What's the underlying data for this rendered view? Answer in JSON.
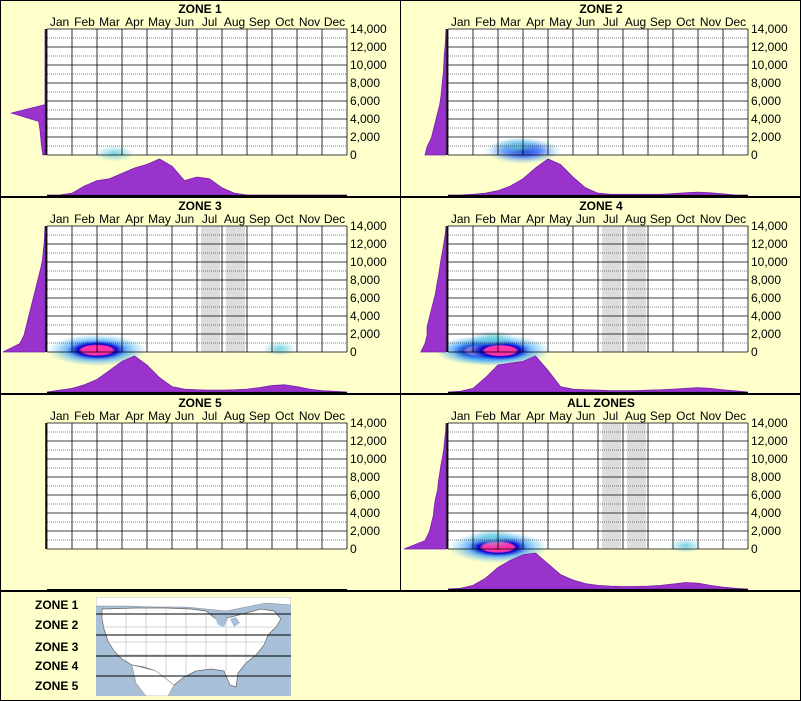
{
  "colors": {
    "background": "#ffffcc",
    "density_fill": "#9933cc",
    "density_stroke": "#7722aa",
    "peak": "#ff33aa",
    "core": "#0000cc",
    "halo": "#66ccdd",
    "shade": "#dddddd"
  },
  "months": [
    "Jan",
    "Feb",
    "Mar",
    "Apr",
    "May",
    "Jun",
    "Jul",
    "Aug",
    "Sep",
    "Oct",
    "Nov",
    "Dec"
  ],
  "y_ticks": [
    "14,000",
    "12,000",
    "10,000",
    "8,000",
    "6,000",
    "4,000",
    "2,000",
    "0"
  ],
  "chart_data": [
    {
      "type": "heatmap",
      "title": "ZONE 1",
      "ylim": [
        0,
        14000
      ],
      "shaded_months": [],
      "hot_spots": [
        {
          "month": 3.2,
          "elev": 150,
          "intensity": 0.2
        }
      ],
      "month_profile": [
        0,
        0,
        0.05,
        0.25,
        0.4,
        0.45,
        0.6,
        0.75,
        0.85,
        1.0,
        0.8,
        0.4,
        0.5,
        0.45,
        0.2,
        0.05,
        0,
        0,
        0,
        0,
        0,
        0,
        0,
        0,
        0
      ],
      "elev_profile": [
        0.05,
        0.08,
        0.1,
        0.12,
        0.15,
        0.8,
        0,
        0,
        0,
        0,
        0,
        0,
        0,
        0,
        0,
        0
      ]
    },
    {
      "type": "heatmap",
      "title": "ZONE 2",
      "ylim": [
        0,
        14000
      ],
      "shaded_months": [],
      "hot_spots": [
        {
          "month": 3.5,
          "elev": 450,
          "intensity": 0.7
        },
        {
          "month": 3.3,
          "elev": 900,
          "intensity": 0.35
        }
      ],
      "month_profile": [
        0,
        0,
        0.02,
        0.05,
        0.12,
        0.25,
        0.45,
        0.75,
        1.0,
        0.85,
        0.5,
        0.2,
        0.05,
        0.02,
        0.02,
        0.02,
        0.02,
        0.02,
        0.04,
        0.06,
        0.08,
        0.06,
        0.03,
        0,
        0
      ],
      "elev_profile": [
        0.5,
        0.45,
        0.35,
        0.3,
        0.25,
        0.2,
        0.15,
        0.12,
        0.1,
        0.08,
        0.06,
        0.05,
        0.04,
        0.02,
        0.01,
        0
      ]
    },
    {
      "type": "heatmap",
      "title": "ZONE 3",
      "ylim": [
        0,
        14000
      ],
      "shaded_months": [
        6,
        7
      ],
      "hot_spots": [
        {
          "month": 2.5,
          "elev": 200,
          "intensity": 1.0
        },
        {
          "month": 9.8,
          "elev": 350,
          "intensity": 0.12
        }
      ],
      "month_profile": [
        0,
        0.05,
        0.1,
        0.2,
        0.35,
        0.6,
        0.85,
        1.0,
        0.75,
        0.4,
        0.15,
        0.08,
        0.06,
        0.05,
        0.05,
        0.06,
        0.08,
        0.12,
        0.18,
        0.2,
        0.15,
        0.08,
        0.04,
        0.02,
        0
      ],
      "elev_profile": [
        1.0,
        0.6,
        0.5,
        0.45,
        0.4,
        0.35,
        0.3,
        0.25,
        0.2,
        0.15,
        0.1,
        0.06,
        0.04,
        0.02,
        0.01,
        0
      ]
    },
    {
      "type": "heatmap",
      "title": "ZONE 4",
      "ylim": [
        0,
        14000
      ],
      "shaded_months": [
        6,
        7
      ],
      "hot_spots": [
        {
          "month": 1.8,
          "elev": 150,
          "intensity": 0.9
        },
        {
          "month": 2.6,
          "elev": 150,
          "intensity": 1.0
        },
        {
          "month": 2.3,
          "elev": 1500,
          "intensity": 0.25
        }
      ],
      "month_profile": [
        0,
        0.02,
        0.1,
        0.4,
        0.75,
        0.8,
        0.85,
        1.0,
        0.6,
        0.15,
        0.08,
        0.06,
        0.05,
        0.04,
        0.04,
        0.04,
        0.05,
        0.06,
        0.08,
        0.1,
        0.12,
        0.1,
        0.06,
        0.03,
        0
      ],
      "elev_profile": [
        0.6,
        0.5,
        0.45,
        0.45,
        0.4,
        0.35,
        0.3,
        0.25,
        0.22,
        0.18,
        0.15,
        0.12,
        0.08,
        0.05,
        0.02,
        0
      ]
    },
    {
      "type": "heatmap",
      "title": "ZONE 5",
      "ylim": [
        0,
        14000
      ],
      "shaded_months": [],
      "hot_spots": [],
      "month_profile": [],
      "elev_profile": []
    },
    {
      "type": "heatmap",
      "title": "ALL ZONES",
      "ylim": [
        0,
        14000
      ],
      "shaded_months": [
        6,
        7
      ],
      "hot_spots": [
        {
          "month": 2.5,
          "elev": 200,
          "intensity": 1.0
        },
        {
          "month": 2.3,
          "elev": 1200,
          "intensity": 0.3
        },
        {
          "month": 10.0,
          "elev": 350,
          "intensity": 0.12
        }
      ],
      "month_profile": [
        0,
        0.02,
        0.1,
        0.3,
        0.6,
        0.8,
        0.95,
        1.0,
        0.7,
        0.4,
        0.25,
        0.15,
        0.1,
        0.08,
        0.07,
        0.07,
        0.08,
        0.1,
        0.14,
        0.18,
        0.16,
        0.1,
        0.05,
        0.02,
        0
      ],
      "elev_profile": [
        1.0,
        0.5,
        0.4,
        0.35,
        0.3,
        0.28,
        0.25,
        0.2,
        0.18,
        0.15,
        0.12,
        0.08,
        0.05,
        0.03,
        0.01,
        0
      ]
    }
  ],
  "legend": {
    "zones": [
      "ZONE 1",
      "ZONE 2",
      "ZONE 3",
      "ZONE 4",
      "ZONE 5"
    ]
  }
}
